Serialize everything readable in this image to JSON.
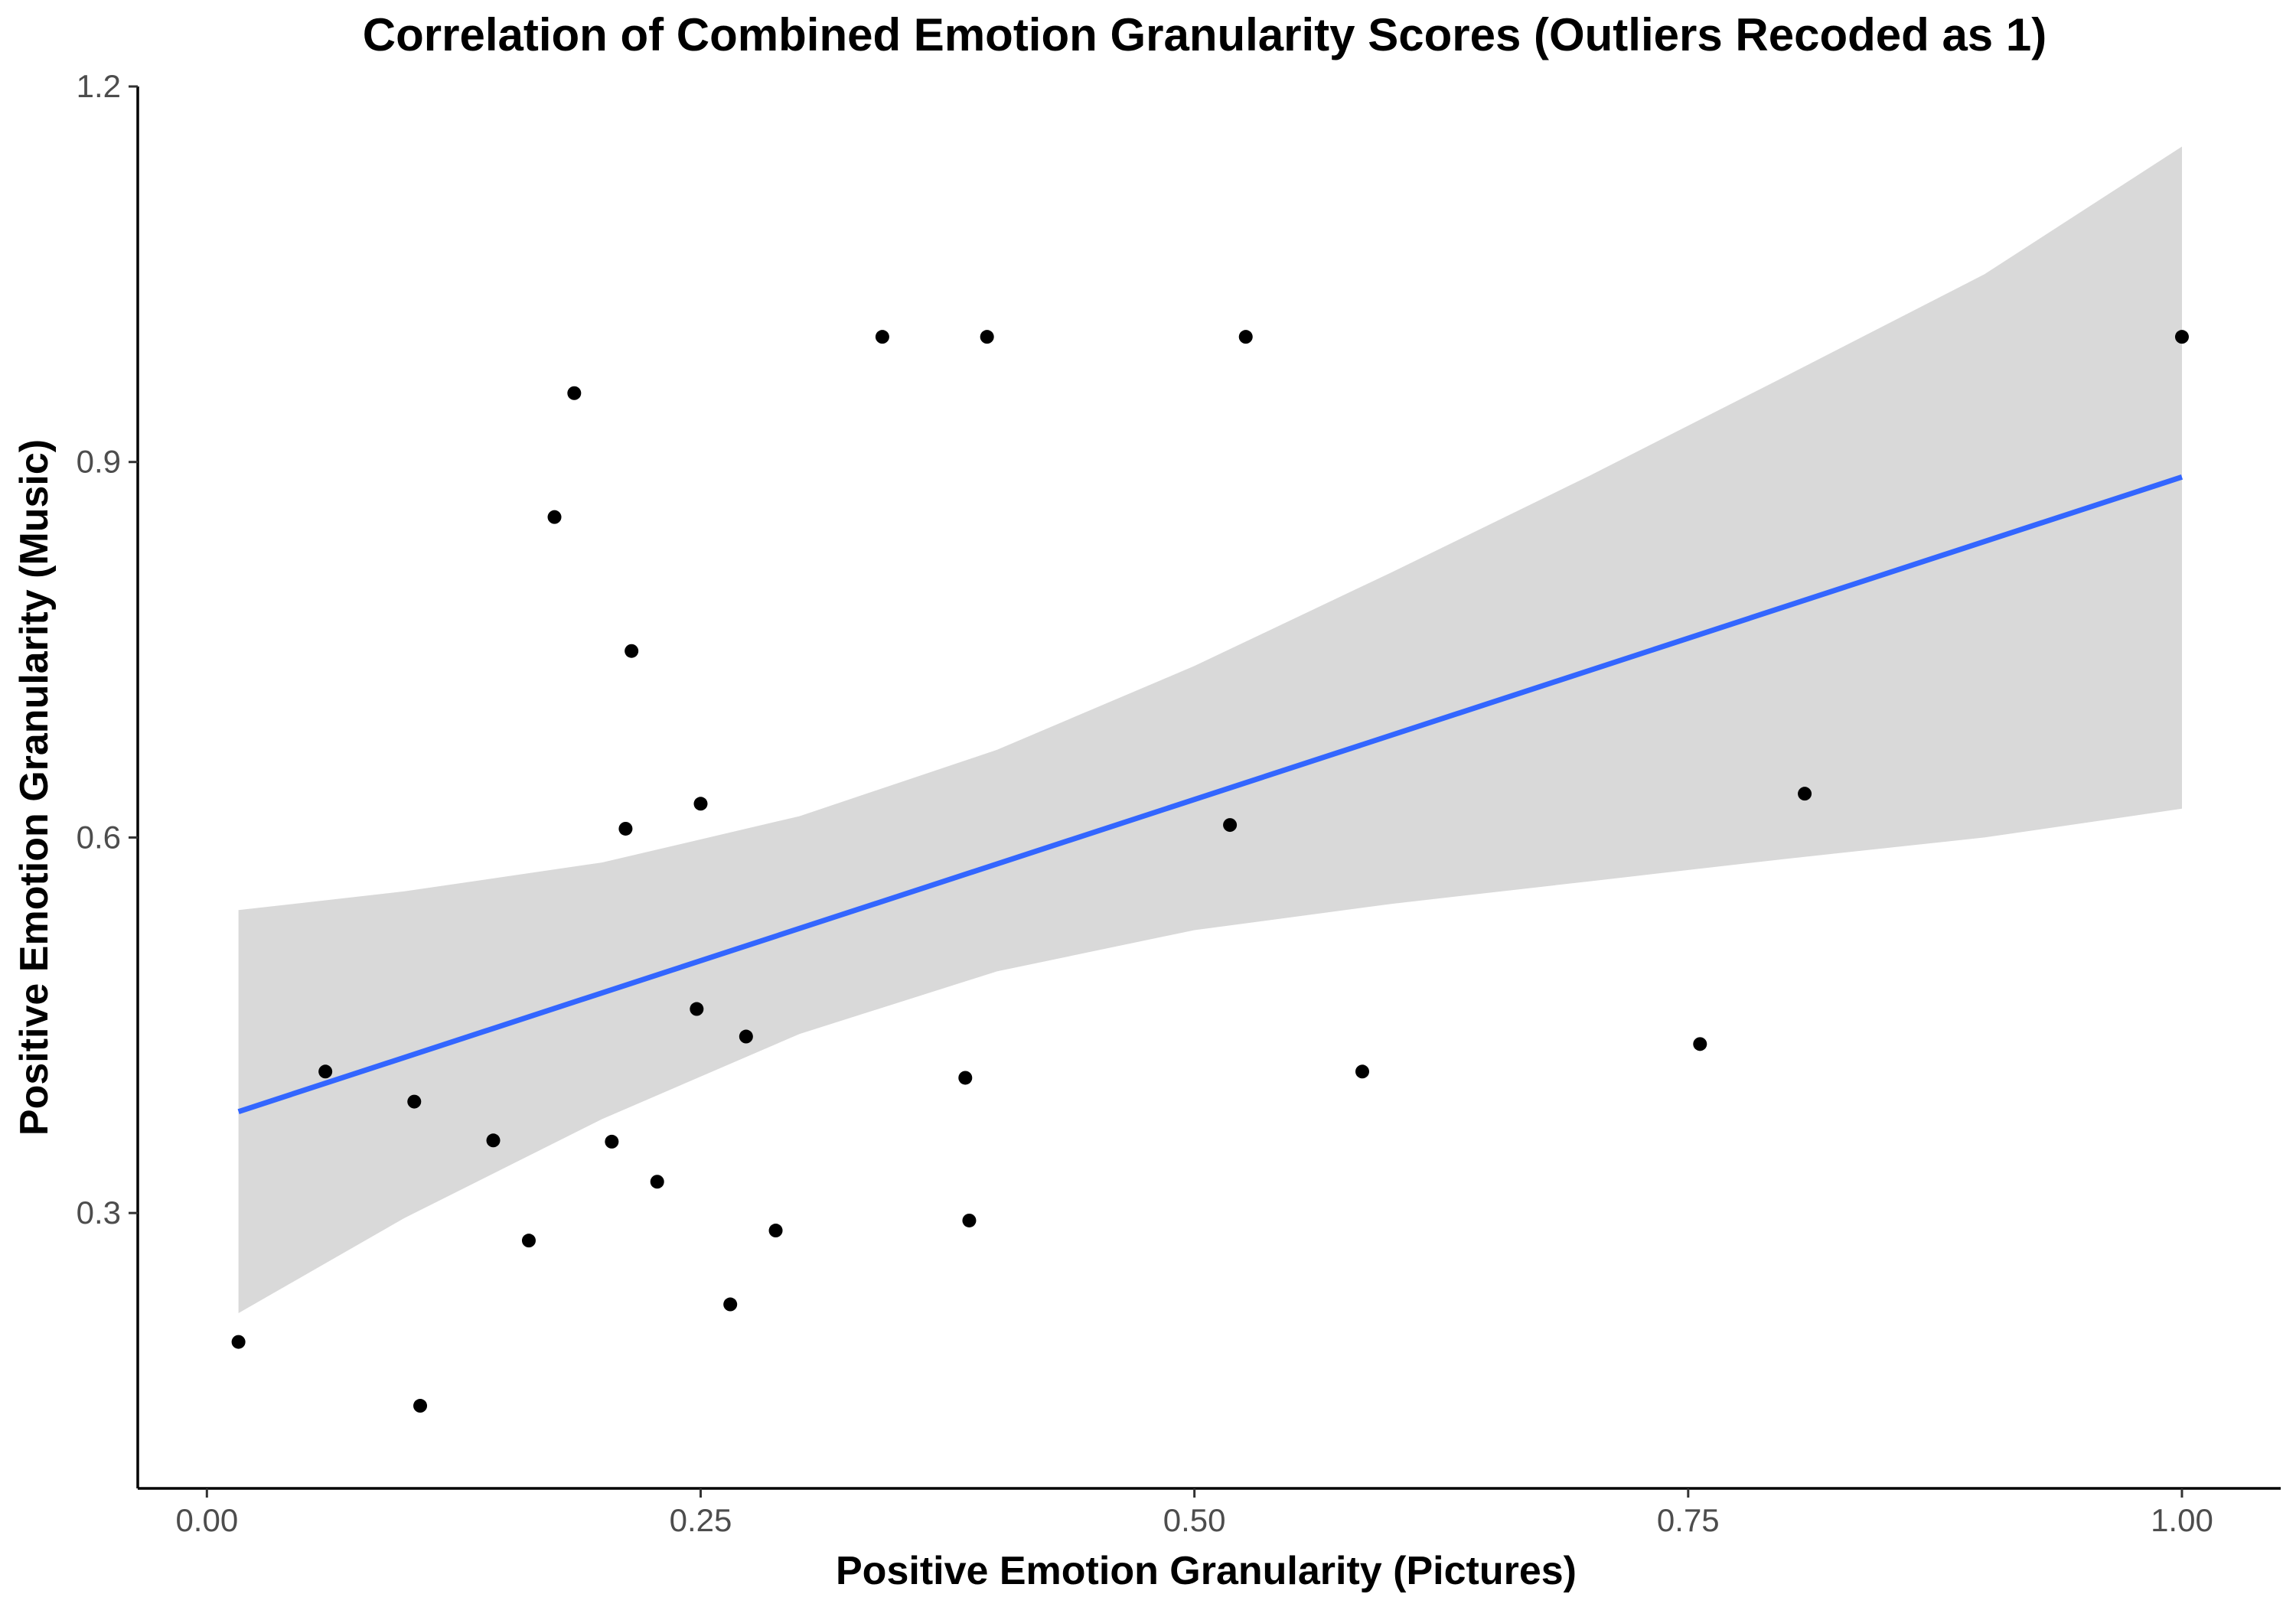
{
  "chart_data": {
    "type": "scatter",
    "title": "Correlation of Combined Emotion Granularity Scores (Outliers Recoded as 1)",
    "xlabel": "Positive Emotion Granularity (Pictures)",
    "ylabel": "Positive Emotion Granularity (Music)",
    "xlim": [
      -0.035,
      1.05
    ],
    "ylim": [
      0.08,
      1.2
    ],
    "x_ticks": [
      0.0,
      0.25,
      0.5,
      0.75,
      1.0
    ],
    "x_tick_labels": [
      "0.00",
      "0.25",
      "0.50",
      "0.75",
      "1.00"
    ],
    "y_ticks": [
      0.3,
      0.6,
      0.9,
      1.2
    ],
    "y_tick_labels": [
      "0.3",
      "0.6",
      "0.9",
      "1.2"
    ],
    "grid": false,
    "points": [
      {
        "x": 0.016,
        "y": 0.197
      },
      {
        "x": 0.06,
        "y": 0.413
      },
      {
        "x": 0.105,
        "y": 0.389
      },
      {
        "x": 0.108,
        "y": 0.146
      },
      {
        "x": 0.145,
        "y": 0.358
      },
      {
        "x": 0.163,
        "y": 0.278
      },
      {
        "x": 0.176,
        "y": 0.856
      },
      {
        "x": 0.186,
        "y": 0.955
      },
      {
        "x": 0.205,
        "y": 0.357
      },
      {
        "x": 0.212,
        "y": 0.607
      },
      {
        "x": 0.215,
        "y": 0.749
      },
      {
        "x": 0.228,
        "y": 0.325
      },
      {
        "x": 0.248,
        "y": 0.463
      },
      {
        "x": 0.25,
        "y": 0.627
      },
      {
        "x": 0.265,
        "y": 0.227
      },
      {
        "x": 0.273,
        "y": 0.441
      },
      {
        "x": 0.288,
        "y": 0.286
      },
      {
        "x": 0.342,
        "y": 1.0
      },
      {
        "x": 0.384,
        "y": 0.408
      },
      {
        "x": 0.386,
        "y": 0.294
      },
      {
        "x": 0.395,
        "y": 1.0
      },
      {
        "x": 0.518,
        "y": 0.61
      },
      {
        "x": 0.526,
        "y": 1.0
      },
      {
        "x": 0.585,
        "y": 0.413
      },
      {
        "x": 0.756,
        "y": 0.435
      },
      {
        "x": 0.809,
        "y": 0.635
      },
      {
        "x": 1.0,
        "y": 1.0
      }
    ],
    "fit_line": {
      "x": [
        0.016,
        1.0
      ],
      "y": [
        0.381,
        0.888
      ],
      "color": "#3366ff"
    },
    "confidence_band": {
      "color": "#d9d9d9",
      "x": [
        0.016,
        0.1,
        0.2,
        0.3,
        0.4,
        0.5,
        0.6,
        0.7,
        0.8,
        0.9,
        1.0
      ],
      "upper": [
        0.542,
        0.557,
        0.58,
        0.617,
        0.67,
        0.737,
        0.812,
        0.889,
        0.969,
        1.05,
        1.152
      ],
      "lower": [
        0.22,
        0.296,
        0.375,
        0.443,
        0.493,
        0.526,
        0.547,
        0.565,
        0.583,
        0.6,
        0.623
      ]
    },
    "point_color": "#000000"
  }
}
